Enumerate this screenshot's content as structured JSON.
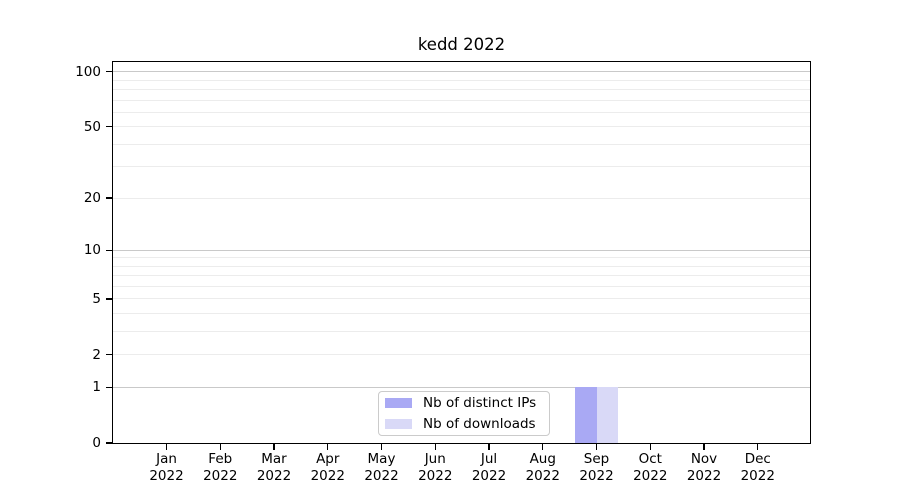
{
  "figure": {
    "background": "#ffffff"
  },
  "chart_data": {
    "type": "bar",
    "title": "kedd 2022",
    "categories": [
      "Jan 2022",
      "Feb 2022",
      "Mar 2022",
      "Apr 2022",
      "May 2022",
      "Jun 2022",
      "Jul 2022",
      "Aug 2022",
      "Sep 2022",
      "Oct 2022",
      "Nov 2022",
      "Dec 2022"
    ],
    "series": [
      {
        "name": "Nb of distinct IPs",
        "color": "#a9a9f4",
        "values": [
          0,
          0,
          0,
          0,
          0,
          0,
          0,
          0,
          1,
          0,
          0,
          0
        ]
      },
      {
        "name": "Nb of downloads",
        "color": "#d9d9f7",
        "values": [
          0,
          0,
          0,
          0,
          0,
          0,
          0,
          0,
          1,
          0,
          0,
          0
        ]
      }
    ],
    "xlabel": "",
    "ylabel": "",
    "yscale": "log10(y+1)",
    "yticks": [
      0,
      1,
      2,
      5,
      10,
      20,
      50,
      100
    ],
    "ylim": [
      0,
      113
    ],
    "grid": {
      "major_values": [
        1,
        10,
        100
      ],
      "minor_values": [
        2,
        3,
        4,
        5,
        6,
        7,
        8,
        9,
        20,
        30,
        40,
        50,
        60,
        70,
        80,
        90
      ],
      "major_color": "#c9c9c9",
      "minor_color": "#ececec"
    },
    "legend_position": "lower center",
    "axis_color": "#000000",
    "text_color": "#000000"
  }
}
